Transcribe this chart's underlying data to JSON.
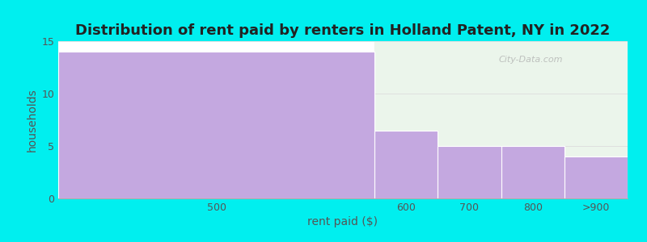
{
  "title": "Distribution of rent paid by renters in Holland Patent, NY in 2022",
  "xlabel": "rent paid ($)",
  "ylabel": "households",
  "categories": [
    "500",
    "600",
    "700",
    "800",
    ">900"
  ],
  "values": [
    14,
    6.5,
    5,
    5,
    4
  ],
  "bar_color": "#C4A8E0",
  "bar_edgecolor": "#FFFFFF",
  "ylim": [
    0,
    15
  ],
  "yticks": [
    0,
    5,
    10,
    15
  ],
  "background_color": "#FFFFFF",
  "outer_background": "#00EFEF",
  "right_bg_color": "#EBF5EB",
  "title_fontsize": 13,
  "axis_label_fontsize": 10,
  "tick_fontsize": 9,
  "watermark": "City-Data.com",
  "bar_left_edges": [
    0,
    5,
    6,
    7,
    8
  ],
  "bar_right_edges": [
    5,
    6,
    7,
    8,
    9
  ],
  "tick_label_positions": [
    2.5,
    5.5,
    6.5,
    7.5,
    8.5
  ],
  "xlim": [
    0,
    9
  ]
}
